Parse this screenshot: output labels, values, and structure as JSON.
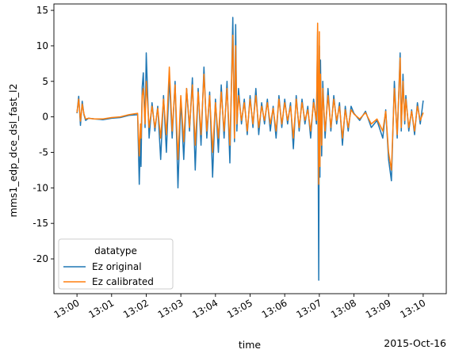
{
  "chart_data": {
    "type": "line",
    "title": "",
    "xlabel": "time",
    "ylabel": "mms1_edp_dce_dsl_fast_l2",
    "date_label": "2015-Oct-16",
    "xlim": [
      "12:59:20",
      "13:10:40"
    ],
    "ylim": [
      -24.9,
      15.9
    ],
    "x_ticks": [
      "13:00",
      "13:01",
      "13:02",
      "13:03",
      "13:04",
      "13:05",
      "13:06",
      "13:07",
      "13:08",
      "13:09",
      "13:10"
    ],
    "y_ticks": [
      -20,
      -15,
      -10,
      -5,
      0,
      5,
      10,
      15
    ],
    "grid": false,
    "legend": {
      "title": "datatype",
      "placement": "lower-left",
      "entries": [
        "Ez original",
        "Ez calibrated"
      ]
    },
    "series": [
      {
        "name": "Ez original",
        "color": "#1f77b4",
        "x": [
          "13:00:00",
          "13:00:03",
          "13:00:06",
          "13:00:09",
          "13:00:12",
          "13:00:15",
          "13:00:20",
          "13:00:30",
          "13:00:45",
          "13:01:00",
          "13:01:15",
          "13:01:30",
          "13:01:45",
          "13:01:48",
          "13:01:50",
          "13:01:51",
          "13:01:53",
          "13:01:55",
          "13:01:58",
          "13:02:00",
          "13:02:05",
          "13:02:10",
          "13:02:15",
          "13:02:20",
          "13:02:25",
          "13:02:30",
          "13:02:35",
          "13:02:40",
          "13:02:45",
          "13:02:50",
          "13:02:55",
          "13:03:00",
          "13:03:05",
          "13:03:10",
          "13:03:15",
          "13:03:20",
          "13:03:25",
          "13:03:30",
          "13:03:35",
          "13:03:40",
          "13:03:45",
          "13:03:50",
          "13:03:55",
          "13:04:00",
          "13:04:05",
          "13:04:10",
          "13:04:15",
          "13:04:20",
          "13:04:25",
          "13:04:30",
          "13:04:33",
          "13:04:35",
          "13:04:37",
          "13:04:40",
          "13:04:45",
          "13:04:50",
          "13:04:55",
          "13:05:00",
          "13:05:05",
          "13:05:10",
          "13:05:15",
          "13:05:20",
          "13:05:25",
          "13:05:30",
          "13:05:35",
          "13:05:40",
          "13:05:45",
          "13:05:50",
          "13:05:55",
          "13:06:00",
          "13:06:05",
          "13:06:10",
          "13:06:15",
          "13:06:20",
          "13:06:25",
          "13:06:30",
          "13:06:35",
          "13:06:40",
          "13:06:45",
          "13:06:50",
          "13:06:55",
          "13:06:57",
          "13:06:59",
          "13:07:00",
          "13:07:01",
          "13:07:02",
          "13:07:04",
          "13:07:06",
          "13:07:10",
          "13:07:15",
          "13:07:20",
          "13:07:25",
          "13:07:30",
          "13:07:35",
          "13:07:40",
          "13:07:45",
          "13:07:50",
          "13:07:55",
          "13:08:00",
          "13:08:10",
          "13:08:20",
          "13:08:30",
          "13:08:40",
          "13:08:50",
          "13:08:55",
          "13:09:00",
          "13:09:05",
          "13:09:10",
          "13:09:15",
          "13:09:20",
          "13:09:22",
          "13:09:25",
          "13:09:28",
          "13:09:30",
          "13:09:35",
          "13:09:40",
          "13:09:45",
          "13:09:50",
          "13:09:55",
          "13:10:00"
        ],
        "y": [
          0.5,
          2.9,
          -1.2,
          2.2,
          0.3,
          -0.5,
          -0.2,
          -0.3,
          -0.4,
          -0.2,
          -0.1,
          0.2,
          0.3,
          -9.5,
          -2.5,
          -7,
          4.2,
          6.2,
          -1.5,
          9,
          -3,
          2,
          -2,
          1.5,
          -6,
          3,
          -5,
          5.5,
          -3,
          5,
          -10,
          2.5,
          -6,
          4,
          -2,
          5.5,
          -7.5,
          4,
          -4,
          7,
          -3,
          3.5,
          -8.5,
          2.5,
          -5,
          4.5,
          -3,
          5,
          -6.5,
          14,
          -3.5,
          13,
          -2,
          4,
          -1,
          2.5,
          -2.5,
          3,
          -1.5,
          4,
          -2.5,
          2,
          -1,
          2.5,
          -2,
          1.5,
          -3,
          3,
          -1.5,
          2.5,
          -1,
          2,
          -4.5,
          3,
          -2,
          2.5,
          -1,
          1.5,
          -3,
          2.5,
          -1,
          12,
          -23,
          10,
          -8.5,
          8,
          -5.5,
          5,
          -3,
          4,
          -2,
          3,
          -1,
          2,
          -4,
          1.5,
          -2,
          1.5,
          0.5,
          -0.5,
          0.8,
          -1.5,
          -0.5,
          -3,
          1,
          -6,
          -9,
          5,
          -3,
          9,
          -2,
          6,
          -1,
          3,
          -2,
          1,
          -2.5,
          2,
          -1,
          2.3
        ]
      },
      {
        "name": "Ez calibrated",
        "color": "#ff7f0e",
        "x": [
          "13:00:00",
          "13:00:03",
          "13:00:06",
          "13:00:09",
          "13:00:12",
          "13:00:15",
          "13:00:20",
          "13:00:30",
          "13:00:45",
          "13:01:00",
          "13:01:15",
          "13:01:30",
          "13:01:45",
          "13:01:48",
          "13:01:50",
          "13:01:51",
          "13:01:53",
          "13:01:55",
          "13:01:58",
          "13:02:00",
          "13:02:05",
          "13:02:10",
          "13:02:15",
          "13:02:20",
          "13:02:25",
          "13:02:30",
          "13:02:35",
          "13:02:40",
          "13:02:45",
          "13:02:50",
          "13:02:55",
          "13:03:00",
          "13:03:05",
          "13:03:10",
          "13:03:15",
          "13:03:20",
          "13:03:25",
          "13:03:30",
          "13:03:35",
          "13:03:40",
          "13:03:45",
          "13:03:50",
          "13:03:55",
          "13:04:00",
          "13:04:05",
          "13:04:10",
          "13:04:15",
          "13:04:20",
          "13:04:25",
          "13:04:30",
          "13:04:33",
          "13:04:35",
          "13:04:37",
          "13:04:40",
          "13:04:45",
          "13:04:50",
          "13:04:55",
          "13:05:00",
          "13:05:05",
          "13:05:10",
          "13:05:15",
          "13:05:20",
          "13:05:25",
          "13:05:30",
          "13:05:35",
          "13:05:40",
          "13:05:45",
          "13:05:50",
          "13:05:55",
          "13:06:00",
          "13:06:05",
          "13:06:10",
          "13:06:15",
          "13:06:20",
          "13:06:25",
          "13:06:30",
          "13:06:35",
          "13:06:40",
          "13:06:45",
          "13:06:50",
          "13:06:55",
          "13:06:57",
          "13:06:59",
          "13:07:00",
          "13:07:01",
          "13:07:02",
          "13:07:04",
          "13:07:06",
          "13:07:10",
          "13:07:15",
          "13:07:20",
          "13:07:25",
          "13:07:30",
          "13:07:35",
          "13:07:40",
          "13:07:45",
          "13:07:50",
          "13:07:55",
          "13:08:00",
          "13:08:10",
          "13:08:20",
          "13:08:30",
          "13:08:40",
          "13:08:50",
          "13:08:55",
          "13:09:00",
          "13:09:05",
          "13:09:10",
          "13:09:15",
          "13:09:20",
          "13:09:22",
          "13:09:25",
          "13:09:28",
          "13:09:30",
          "13:09:35",
          "13:09:40",
          "13:09:45",
          "13:09:50",
          "13:09:55",
          "13:10:00"
        ],
        "y": [
          0.6,
          2.5,
          -0.6,
          1.8,
          0.4,
          -0.3,
          -0.2,
          -0.3,
          -0.3,
          -0.1,
          0,
          0.3,
          0.5,
          -5.5,
          -1,
          -3,
          3,
          4,
          -1,
          5,
          -1.5,
          1.5,
          -1.5,
          1.2,
          -3,
          2.5,
          -2.5,
          7,
          -2,
          4.5,
          -6,
          3,
          -3.5,
          4,
          -1.5,
          4.5,
          -4,
          3.5,
          -2.5,
          6,
          -2,
          3,
          -5,
          2,
          -3,
          3.5,
          -2,
          4,
          -4,
          11.5,
          -3,
          10,
          -1,
          3,
          -0.5,
          2,
          -2,
          2.5,
          -1,
          3,
          -1.5,
          1.5,
          -0.5,
          2,
          -1,
          1.2,
          -2,
          2.5,
          -1,
          2,
          -0.5,
          1.5,
          -3,
          2.5,
          -1.5,
          2,
          -0.5,
          1,
          -2,
          2,
          -0.5,
          13.2,
          -9.5,
          12,
          -7,
          6,
          -4,
          4,
          -2,
          3,
          -1.5,
          2.5,
          -0.5,
          1.5,
          -3,
          1,
          -1.5,
          1,
          0.4,
          -0.3,
          0.6,
          -1,
          -0.3,
          -2,
          0.8,
          -5,
          -7.5,
          4,
          -2.5,
          8.3,
          -1.5,
          5,
          -0.5,
          2.5,
          -1.5,
          0.8,
          -2,
          1.5,
          -0.5,
          0.6
        ]
      }
    ]
  }
}
